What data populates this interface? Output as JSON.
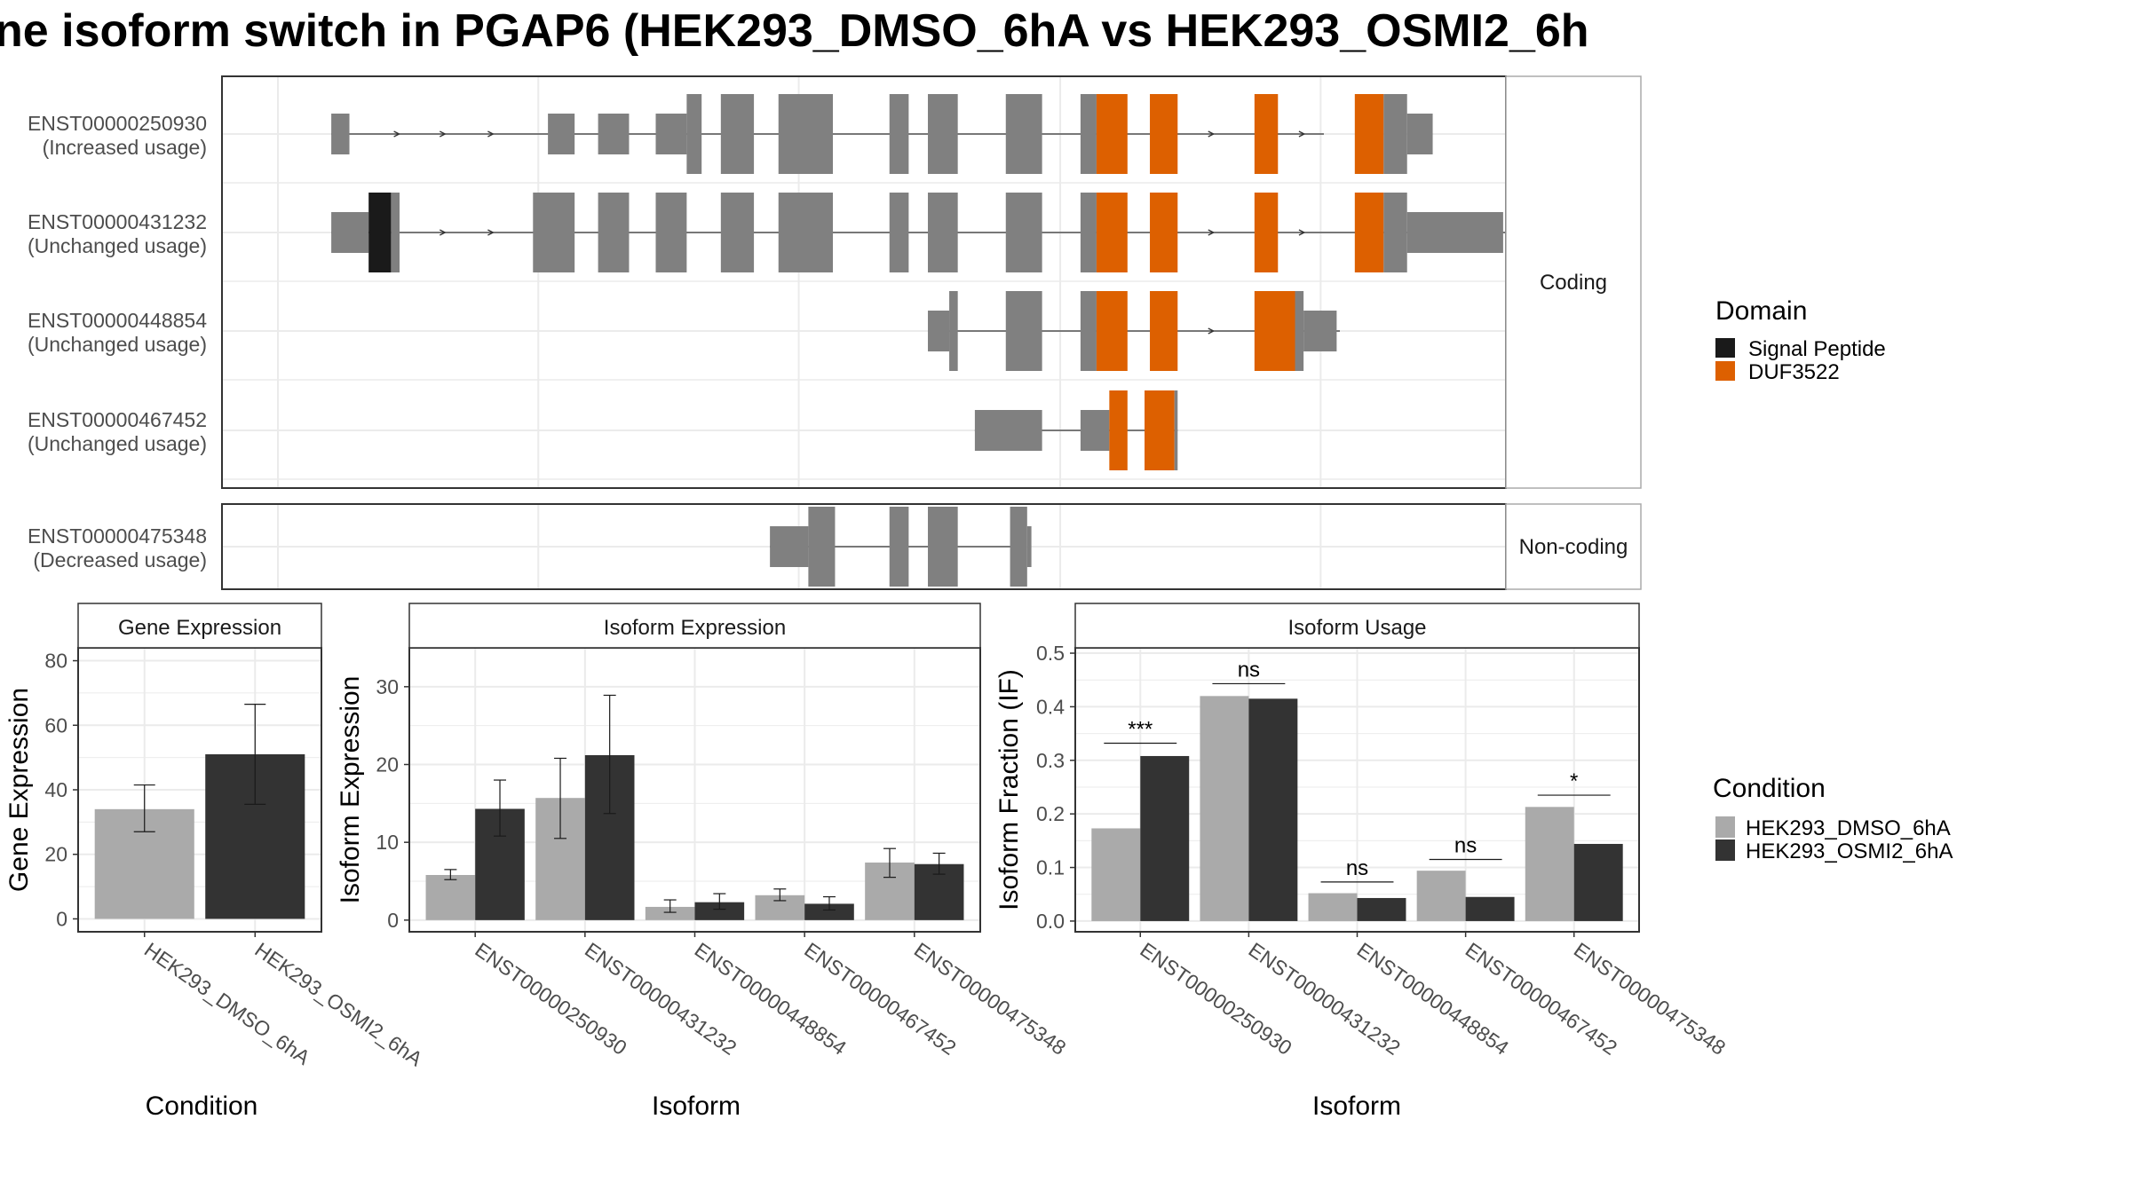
{
  "title": "ne isoform switch in PGAP6 (HEK293_DMSO_6hA vs HEK293_OSMI2_6h",
  "colors": {
    "exon": "#808080",
    "signal_peptide": "#1a1a1a",
    "duf3522": "#DD6000",
    "dmso": "#AAAAAA",
    "osmi2": "#333333",
    "grid": "#EBEBEB",
    "panel_border": "#333333",
    "strip_border": "#AAAAAA"
  },
  "structure": {
    "coding_label": "Coding",
    "noncoding_label": "Non-coding",
    "transcripts": [
      {
        "id": "ENST00000250930",
        "usage": "(Increased usage)",
        "group": "coding",
        "intron": [
          0.05,
          0.98
        ],
        "exons": [
          [
            0.05,
            0.067,
            "s"
          ],
          [
            0.253,
            0.278,
            "s"
          ],
          [
            0.3,
            0.329,
            "s"
          ],
          [
            0.354,
            0.383,
            "s"
          ],
          [
            0.383,
            0.397,
            "t"
          ],
          [
            0.415,
            0.446,
            "t"
          ],
          [
            0.469,
            0.52,
            "t"
          ],
          [
            0.573,
            0.591,
            "t"
          ],
          [
            0.609,
            0.637,
            "t"
          ],
          [
            0.682,
            0.716,
            "t"
          ],
          [
            0.752,
            0.767,
            "t"
          ],
          [
            0.767,
            0.796,
            "o"
          ],
          [
            0.817,
            0.843,
            "o"
          ],
          [
            0.915,
            0.937,
            "o"
          ],
          [
            1.009,
            1.036,
            "o"
          ],
          [
            1.036,
            1.058,
            "t"
          ],
          [
            1.058,
            1.082,
            "s"
          ]
        ],
        "arrows": [
          0.112,
          0.155,
          0.2,
          0.875,
          0.96
        ]
      },
      {
        "id": "ENST00000431232",
        "usage": "(Unchanged usage)",
        "group": "coding",
        "intron": [
          0.05,
          1.15
        ],
        "exons": [
          [
            0.05,
            0.085,
            "s"
          ],
          [
            0.085,
            0.106,
            "k"
          ],
          [
            0.106,
            0.114,
            "t"
          ],
          [
            0.239,
            0.278,
            "t"
          ],
          [
            0.3,
            0.329,
            "t"
          ],
          [
            0.354,
            0.383,
            "t"
          ],
          [
            0.415,
            0.446,
            "t"
          ],
          [
            0.469,
            0.52,
            "t"
          ],
          [
            0.573,
            0.591,
            "t"
          ],
          [
            0.609,
            0.637,
            "t"
          ],
          [
            0.682,
            0.716,
            "t"
          ],
          [
            0.752,
            0.767,
            "t"
          ],
          [
            0.767,
            0.796,
            "o"
          ],
          [
            0.817,
            0.843,
            "o"
          ],
          [
            0.915,
            0.937,
            "o"
          ],
          [
            1.009,
            1.036,
            "o"
          ],
          [
            1.036,
            1.058,
            "t"
          ],
          [
            1.058,
            1.148,
            "s"
          ]
        ],
        "arrows": [
          0.155,
          0.2,
          0.875,
          0.96
        ]
      },
      {
        "id": "ENST00000448854",
        "usage": "(Unchanged usage)",
        "group": "coding",
        "intron": [
          0.609,
          0.995
        ],
        "exons": [
          [
            0.609,
            0.629,
            "s"
          ],
          [
            0.629,
            0.637,
            "t"
          ],
          [
            0.682,
            0.716,
            "t"
          ],
          [
            0.752,
            0.767,
            "t"
          ],
          [
            0.767,
            0.796,
            "o"
          ],
          [
            0.817,
            0.843,
            "o"
          ],
          [
            0.915,
            0.953,
            "o"
          ],
          [
            0.953,
            0.961,
            "t"
          ],
          [
            0.961,
            0.992,
            "s"
          ]
        ],
        "arrows": [
          0.875
        ]
      },
      {
        "id": "ENST00000467452",
        "usage": "(Unchanged usage)",
        "group": "coding",
        "intron": [
          0.653,
          0.843
        ],
        "exons": [
          [
            0.653,
            0.716,
            "s"
          ],
          [
            0.752,
            0.779,
            "s"
          ],
          [
            0.779,
            0.796,
            "o"
          ],
          [
            0.812,
            0.84,
            "o"
          ],
          [
            0.84,
            0.843,
            "t"
          ]
        ],
        "arrows": []
      },
      {
        "id": "ENST00000475348",
        "usage": "(Decreased usage)",
        "group": "noncoding",
        "intron": [
          0.461,
          0.697
        ],
        "exons": [
          [
            0.461,
            0.497,
            "s"
          ],
          [
            0.497,
            0.522,
            "t"
          ],
          [
            0.573,
            0.591,
            "t"
          ],
          [
            0.609,
            0.637,
            "t"
          ],
          [
            0.686,
            0.702,
            "t"
          ],
          [
            0.702,
            0.706,
            "s"
          ]
        ],
        "arrows": []
      }
    ]
  },
  "legend_domain": {
    "title": "Domain",
    "items": [
      "Signal Peptide",
      "DUF3522"
    ]
  },
  "legend_condition": {
    "title": "Condition",
    "items": [
      "HEK293_DMSO_6hA",
      "HEK293_OSMI2_6hA"
    ]
  },
  "chart_data": [
    {
      "type": "bar",
      "title": "Gene Expression",
      "xlabel": "Condition",
      "ylabel": "Gene Expression",
      "categories": [
        "HEK293_DMSO_6hA",
        "HEK293_OSMI2_6hA"
      ],
      "values": [
        34,
        51
      ],
      "errors": [
        [
          27,
          41.5
        ],
        [
          35.5,
          66.5
        ]
      ],
      "ylim": [
        -4,
        84
      ],
      "yticks": [
        0,
        20,
        40,
        60,
        80
      ],
      "ytick_labels": [
        "0",
        "20",
        "40",
        "60",
        "80"
      ]
    },
    {
      "type": "bar",
      "title": "Isoform Expression",
      "xlabel": "Isoform",
      "ylabel": "Isoform Expression",
      "categories": [
        "ENST00000250930",
        "ENST00000431232",
        "ENST00000448854",
        "ENST00000467452",
        "ENST00000475348"
      ],
      "series": [
        {
          "values": [
            5.8,
            15.7,
            1.7,
            3.2,
            7.4
          ],
          "errors": [
            [
              5.2,
              6.5
            ],
            [
              10.5,
              20.8
            ],
            [
              1.0,
              2.6
            ],
            [
              2.5,
              4.0
            ],
            [
              5.5,
              9.2
            ]
          ]
        },
        {
          "values": [
            14.3,
            21.2,
            2.3,
            2.1,
            7.2
          ],
          "errors": [
            [
              10.8,
              18.0
            ],
            [
              13.7,
              28.9
            ],
            [
              1.4,
              3.4
            ],
            [
              1.3,
              3.0
            ],
            [
              5.9,
              8.6
            ]
          ]
        }
      ],
      "ylim": [
        -1.5,
        35
      ],
      "yticks": [
        0,
        10,
        20,
        30
      ],
      "ytick_labels": [
        "0",
        "10",
        "20",
        "30"
      ]
    },
    {
      "type": "bar",
      "title": "Isoform Usage",
      "xlabel": "Isoform",
      "ylabel": "Isoform Fraction (IF)",
      "categories": [
        "ENST00000250930",
        "ENST00000431232",
        "ENST00000448854",
        "ENST00000467452",
        "ENST00000475348"
      ],
      "series": [
        {
          "values": [
            0.173,
            0.42,
            0.052,
            0.094,
            0.213
          ]
        },
        {
          "values": [
            0.308,
            0.415,
            0.043,
            0.045,
            0.144
          ]
        }
      ],
      "significance": [
        "***",
        "ns",
        "ns",
        "ns",
        "*"
      ],
      "significance_y": [
        0.332,
        0.443,
        0.073,
        0.115,
        0.235
      ],
      "ylim": [
        -0.02,
        0.51
      ],
      "yticks": [
        0,
        0.1,
        0.2,
        0.3,
        0.4,
        0.5
      ],
      "ytick_labels": [
        "0.0",
        "0.1",
        "0.2",
        "0.3",
        "0.4",
        "0.5"
      ]
    }
  ]
}
